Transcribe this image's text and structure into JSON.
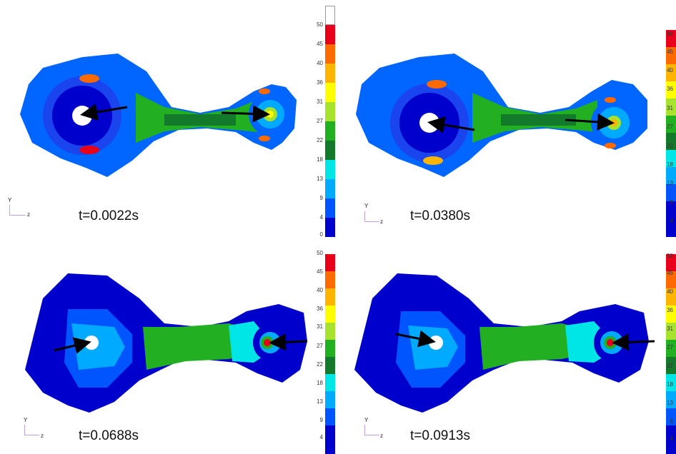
{
  "panels": [
    {
      "time_label": "t=0.0022s"
    },
    {
      "time_label": "t=0.0380s"
    },
    {
      "time_label": "t=0.0688s"
    },
    {
      "time_label": "t=0.0913s"
    }
  ],
  "axis": {
    "y": "Y",
    "z": "z"
  },
  "colorbar": {
    "ticks": [
      "50",
      "45",
      "40",
      "36",
      "31",
      "27",
      "22",
      "18",
      "13",
      "9",
      "4",
      "0"
    ],
    "colors": [
      "#ffffff",
      "#e8001b",
      "#ff6a00",
      "#ffb400",
      "#ffff00",
      "#a6e22e",
      "#22b022",
      "#127a2a",
      "#00e6e6",
      "#00aaff",
      "#0055ff",
      "#0000cc"
    ]
  }
}
